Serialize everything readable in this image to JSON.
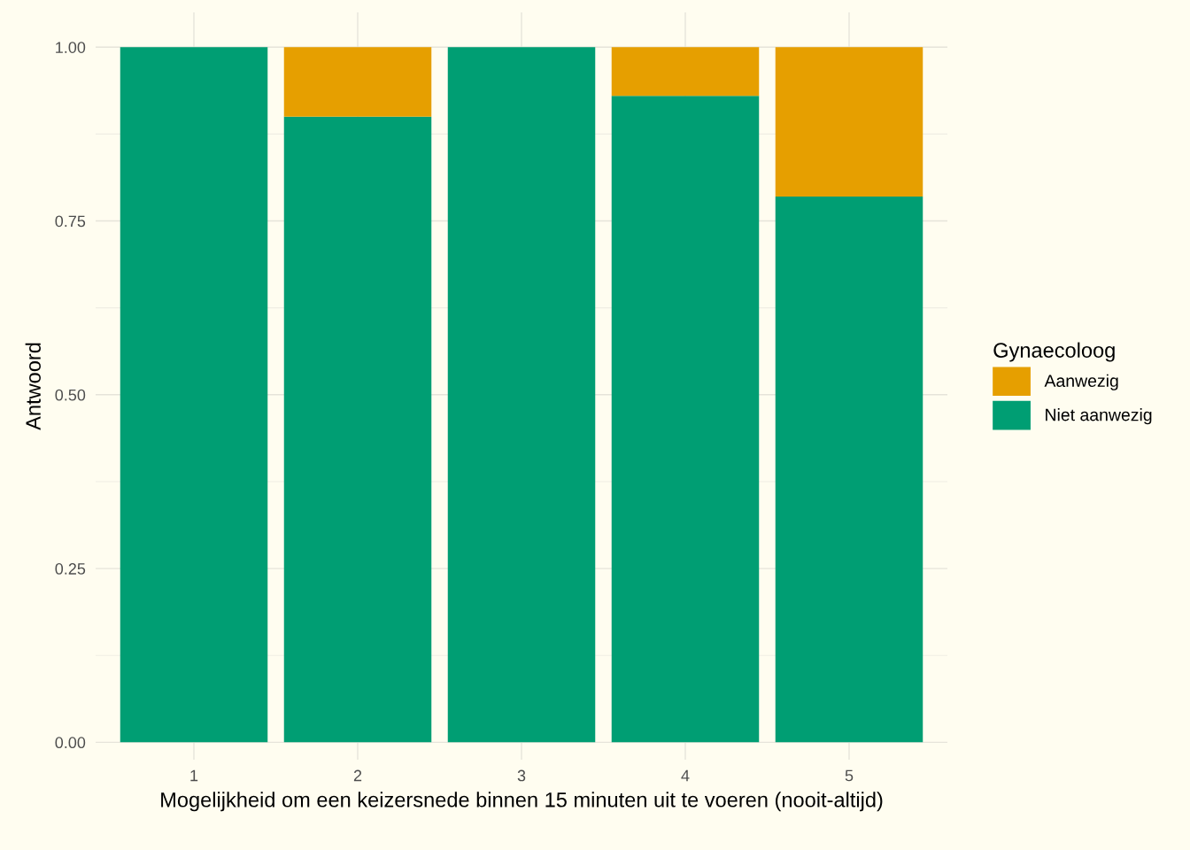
{
  "chart_data": {
    "type": "bar",
    "stacked": true,
    "xlabel": "Mogelijkheid om een keizersnede binnen 15 minuten uit te voeren (nooit-altijd)",
    "ylabel": "Antwoord",
    "legend_title": "Gynaecoloog",
    "categories": [
      "1",
      "2",
      "3",
      "4",
      "5"
    ],
    "series": [
      {
        "name": "Niet aanwezig",
        "color": "#009e73",
        "values": [
          1.0,
          0.9,
          1.0,
          0.93,
          0.785
        ]
      },
      {
        "name": "Aanwezig",
        "color": "#e69f00",
        "values": [
          0.0,
          0.1,
          0.0,
          0.07,
          0.215
        ]
      }
    ],
    "ylim": [
      -0.025,
      1.05
    ],
    "yticks": [
      {
        "value": 0,
        "label": "0.00"
      },
      {
        "value": 0.25,
        "label": "0.25"
      },
      {
        "value": 0.5,
        "label": "0.50"
      },
      {
        "value": 0.75,
        "label": "0.75"
      },
      {
        "value": 1,
        "label": "1.00"
      }
    ],
    "grid": true,
    "legend": "right"
  }
}
